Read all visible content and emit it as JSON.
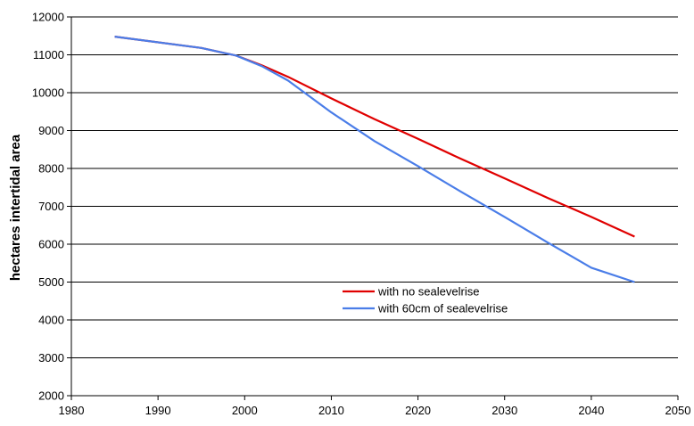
{
  "chart_data": {
    "type": "line",
    "title": "",
    "xlabel": "",
    "ylabel": "hectares intertidal area",
    "xlim": [
      1980,
      2050
    ],
    "ylim": [
      2000,
      12000
    ],
    "xticks": [
      1980,
      1990,
      2000,
      2010,
      2020,
      2030,
      2040,
      2050
    ],
    "yticks": [
      2000,
      3000,
      4000,
      5000,
      6000,
      7000,
      8000,
      9000,
      10000,
      11000,
      12000
    ],
    "grid": "horizontal",
    "legend_position": "center-right",
    "series": [
      {
        "name": "with no sealevelrise",
        "color": "#e00000",
        "x": [
          1985,
          1995,
          1999,
          2002,
          2005,
          2010,
          2015,
          2020,
          2025,
          2030,
          2035,
          2040,
          2045
        ],
        "y": [
          11480,
          11180,
          10980,
          10720,
          10420,
          9850,
          9300,
          8780,
          8250,
          7740,
          7220,
          6720,
          6200
        ]
      },
      {
        "name": "with 60cm of sealevelrise",
        "color": "#4a7de8",
        "x": [
          1985,
          1995,
          1999,
          2002,
          2005,
          2010,
          2015,
          2020,
          2025,
          2030,
          2035,
          2040,
          2045
        ],
        "y": [
          11480,
          11180,
          10980,
          10700,
          10320,
          9480,
          8720,
          8060,
          7380,
          6720,
          6040,
          5380,
          5000
        ]
      }
    ],
    "annotations": [
      {
        "type": "hline",
        "y": 5000,
        "x_start": 1980,
        "x_end": 2001,
        "color": "#000000"
      }
    ]
  }
}
